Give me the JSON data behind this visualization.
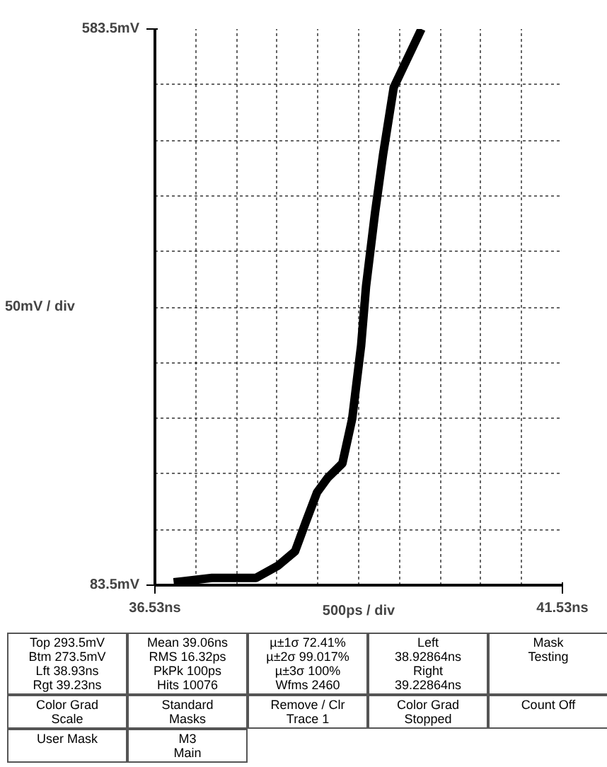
{
  "chart_data": {
    "type": "line",
    "xlabel": "500ps / div",
    "ylabel": "50mV / div",
    "x": [
      36.76,
      37.23,
      37.77,
      38.04,
      38.25,
      38.38,
      38.52,
      38.65,
      38.83,
      38.95,
      39.06,
      39.12,
      39.23,
      39.33,
      39.46,
      39.8
    ],
    "series": [
      {
        "color": "#000000",
        "values": [
          86,
          90,
          90,
          101,
          114,
          140,
          167,
          180,
          193,
          233,
          299,
          352,
          418,
          471,
          531,
          583.5
        ]
      }
    ],
    "xlim": [
      36.53,
      41.53
    ],
    "xticks": [
      {
        "value": 36.53,
        "label": "36.53ns"
      },
      {
        "value": 41.53,
        "label": "41.53ns"
      }
    ],
    "ylim": [
      83.5,
      583.5
    ],
    "yticks": [
      {
        "value": 83.5,
        "label": "83.5mV"
      },
      {
        "value": 583.5,
        "label": "583.5mV"
      }
    ],
    "grid": true,
    "line_style": "solid",
    "marker": "none",
    "annotations": [
      "Top 293.5mV\nBtm 273.5mV\nLft 38.93ns\nRgt 39.23ns",
      "Mean 39.06ns\nRMS 16.32ps\nPkPk 100ps\nHits 10076",
      "µ±1σ 72.41%\nµ±2σ 99.017%\nµ±3σ 100%\nWfms 2460",
      "Left\n38.92864ns\nRight\n39.22864ns",
      "Mask\nTesting",
      "Color Grad\nScale",
      "Standard\nMasks",
      "Remove / Clr\nTrace 1",
      "Color Grad\nStopped",
      "Count Off",
      "User Mask",
      "M3\nMain"
    ]
  }
}
